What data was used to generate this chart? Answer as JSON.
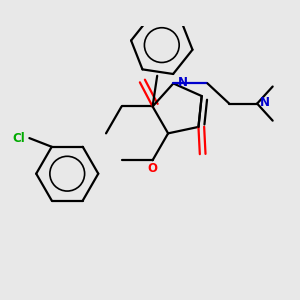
{
  "bg_color": "#e8e8e8",
  "bond_color": "#000000",
  "o_color": "#ff0000",
  "n_color": "#0000cd",
  "cl_color": "#00aa00",
  "lw": 1.6,
  "figsize": [
    3.0,
    3.0
  ],
  "dpi": 100,
  "xlim": [
    -1.35,
    1.55
  ],
  "ylim": [
    -1.3,
    1.35
  ]
}
